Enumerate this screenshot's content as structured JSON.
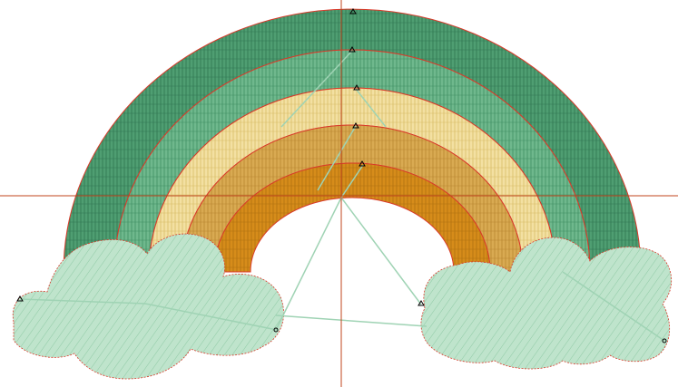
{
  "design": {
    "colors": {
      "band_outer": "#4f9e72",
      "band_outer_stitch": "#2f7550",
      "band_second": "#6fb88d",
      "band_second_stitch": "#3f8f62",
      "band_middle": "#f3e0a2",
      "band_middle_stitch": "#d8bd66",
      "band_fourth": "#d9aa52",
      "band_fourth_stitch": "#b9862f",
      "band_inner": "#d68c1a",
      "band_inner_stitch": "#b0700f",
      "cloud_fill": "#bfe4cc",
      "cloud_stitch": "#8fcaa5",
      "outline": "#d93a2a",
      "crosshair": "#c0451e",
      "travel_path": "#9fd3b4",
      "marker": "#000000"
    },
    "markers": {
      "start": "triangle",
      "end": "circle"
    }
  }
}
